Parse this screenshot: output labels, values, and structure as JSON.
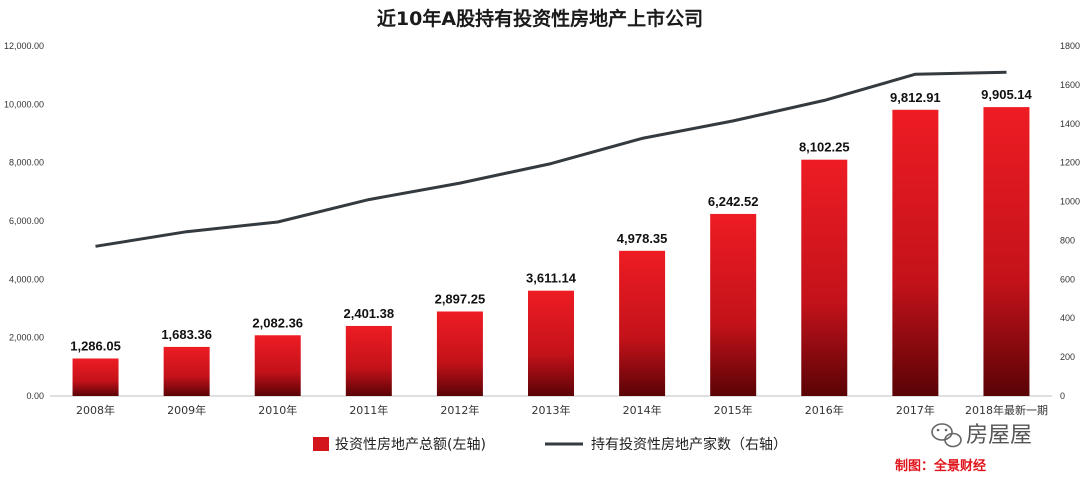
{
  "chart_data": {
    "type": "bar",
    "title": "近10年A股持有投资性房地产上市公司",
    "categories": [
      "2008年",
      "2009年",
      "2010年",
      "2011年",
      "2012年",
      "2013年",
      "2014年",
      "2015年",
      "2016年",
      "2017年",
      "2018年最新一期"
    ],
    "series": [
      {
        "name": "投资性房地产总额(左轴)",
        "type": "bar",
        "axis": "left",
        "color": "#e0141b",
        "values": [
          1286.05,
          1683.36,
          2082.36,
          2401.38,
          2897.25,
          3611.14,
          4978.35,
          6242.52,
          8102.25,
          9812.91,
          9905.14
        ],
        "labels": [
          "1,286.05",
          "1,683.36",
          "2,082.36",
          "2,401.38",
          "2,897.25",
          "3,611.14",
          "4,978.35",
          "6,242.52",
          "8,102.25",
          "9,812.91",
          "9,905.14"
        ]
      },
      {
        "name": "持有投资性房地产家数（右轴）",
        "type": "line",
        "axis": "right",
        "color": "#333b40",
        "values": [
          770,
          845,
          895,
          1010,
          1095,
          1195,
          1325,
          1415,
          1520,
          1655,
          1665
        ]
      }
    ],
    "left_axis": {
      "ylim": [
        0,
        12000
      ],
      "ticks": [
        "0.00",
        "2,000.00",
        "4,000.00",
        "6,000.00",
        "8,000.00",
        "10,000.00",
        "12,000.00"
      ]
    },
    "right_axis": {
      "ylim": [
        0,
        1800
      ],
      "ticks": [
        "0",
        "200",
        "400",
        "600",
        "800",
        "1000",
        "1200",
        "1400",
        "1600",
        "1800"
      ]
    },
    "grid": false,
    "legend_position": "bottom-center"
  },
  "credit": "制图：全景财经",
  "watermark": "房屋屋"
}
